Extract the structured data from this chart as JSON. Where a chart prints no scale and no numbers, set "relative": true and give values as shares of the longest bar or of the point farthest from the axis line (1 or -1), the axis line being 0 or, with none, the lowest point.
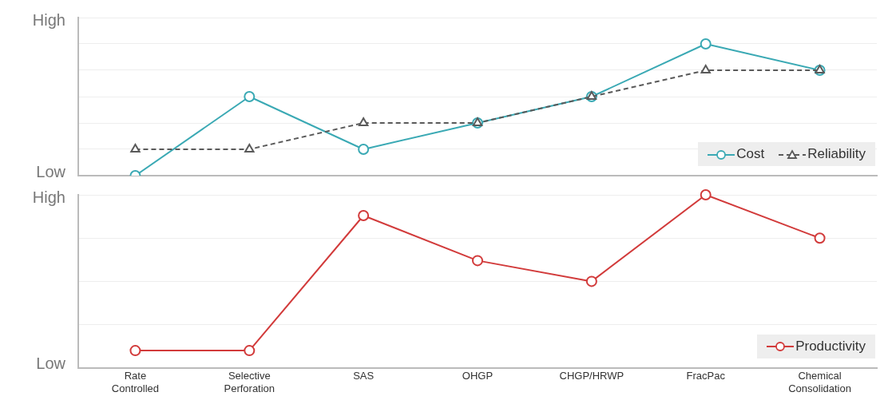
{
  "chart_data": [
    {
      "type": "line",
      "categories": [
        null,
        null,
        null,
        null,
        null,
        null,
        null
      ],
      "relative": true,
      "series": [
        {
          "name": "Cost",
          "color": "#3aa9b4",
          "values": [
            0,
            0.6,
            0.2,
            0.4,
            0.6,
            1,
            0.8
          ],
          "marker": "circle",
          "line_style": "solid"
        },
        {
          "name": "Reliability",
          "color": "#5a5a5a",
          "values": [
            0.2,
            0.2,
            0.4,
            0.4,
            0.6,
            0.8,
            0.8
          ],
          "marker": "triangle",
          "line_style": "dashed"
        }
      ],
      "annotations": [
        "High",
        "Low"
      ],
      "grid": "y",
      "legend": "bottom right",
      "tick_labels": false
    },
    {
      "type": "line",
      "categories": [
        "Rate Controlled",
        "Selective Perforation",
        "SAS",
        "OHGP",
        "CHGP/HRWP",
        "FracPac",
        "Chemical Consolidation"
      ],
      "relative": true,
      "series": [
        {
          "name": "Productivity",
          "color": "#d23b3b",
          "values": [
            0.1,
            0.1,
            0.88,
            0.62,
            0.5,
            1,
            0.75
          ],
          "marker": "circle",
          "line_style": "solid"
        }
      ],
      "annotations": [
        "High",
        "Low"
      ],
      "grid": "y",
      "legend": "bottom right",
      "tick_labels": "x"
    }
  ]
}
